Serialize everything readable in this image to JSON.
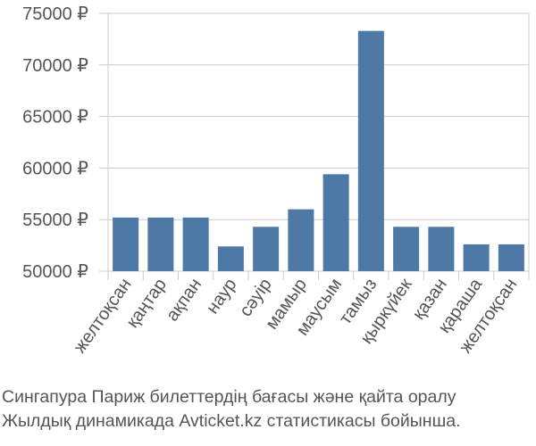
{
  "chart_data": {
    "type": "bar",
    "categories": [
      "желтоқсан",
      "қаңтар",
      "ақпан",
      "наур",
      "сәуір",
      "мамыр",
      "маусым",
      "тамыз",
      "қыркүйек",
      "қазан",
      "қараша",
      "желтоқсан"
    ],
    "series": [
      {
        "values": [
          55200,
          55200,
          55200,
          52400,
          54300,
          56000,
          59400,
          73300,
          54300,
          54300,
          52600,
          52600
        ]
      }
    ],
    "title": "",
    "xlabel": "",
    "ylabel": "",
    "ylim": [
      50000,
      75000
    ],
    "yticks": [
      50000,
      55000,
      60000,
      65000,
      70000,
      75000
    ],
    "ytick_labels": [
      "50000 ₽",
      "55000 ₽",
      "60000 ₽",
      "65000 ₽",
      "70000 ₽",
      "75000 ₽"
    ],
    "grid": "horizontal",
    "bar_color": "#4e79a7",
    "grid_color": "#cccccc"
  },
  "caption": {
    "line1": "Сингапура Париж билеттердің бағасы және қайта оралу",
    "line2": "Жылдық динамикада Avticket.kz статистикасы бойынша."
  }
}
